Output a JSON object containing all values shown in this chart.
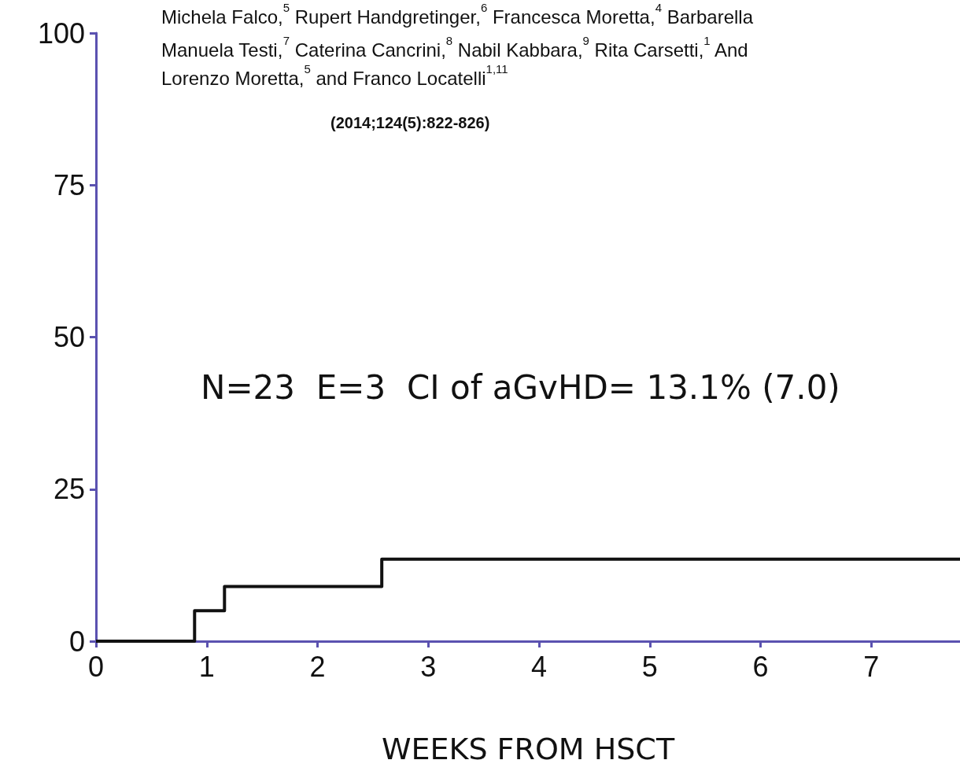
{
  "chart_data": {
    "type": "step",
    "xlabel": "WEEKS FROM HSCT",
    "annotations": [
      "Michela Falco,$^{5}$ Rupert Handgretinger,$^{6}$ Francesca Moretta,$^{4}$ Barbarella",
      "Manuela Testi,$^{7}$ Caterina Cancrini,$^{8}$ Nabil Kabbara,$^{9}$ Rita Carsetti,$^{1}$ And",
      "Lorenzo Moretta,$^{5}$ and Franco Locatelli$^{1,11}$",
      "(2014;124(5):822-826)",
      "N=23  E=3  CI of aGvHD= 13.1% (7.0)"
    ],
    "x": [
      0,
      0.89,
      1.16,
      2.58,
      7.8
    ],
    "values": [
      0,
      5,
      9,
      13.5,
      13.5
    ],
    "color": "#111111",
    "xlim": [
      0,
      7.8
    ],
    "xticks": [
      0,
      1,
      2,
      3,
      4,
      5,
      6,
      7
    ],
    "ylim": [
      0,
      100
    ],
    "yticks": [
      0,
      25,
      50,
      75,
      100
    ],
    "grid": false,
    "marker": "none",
    "line_style": "solid"
  }
}
